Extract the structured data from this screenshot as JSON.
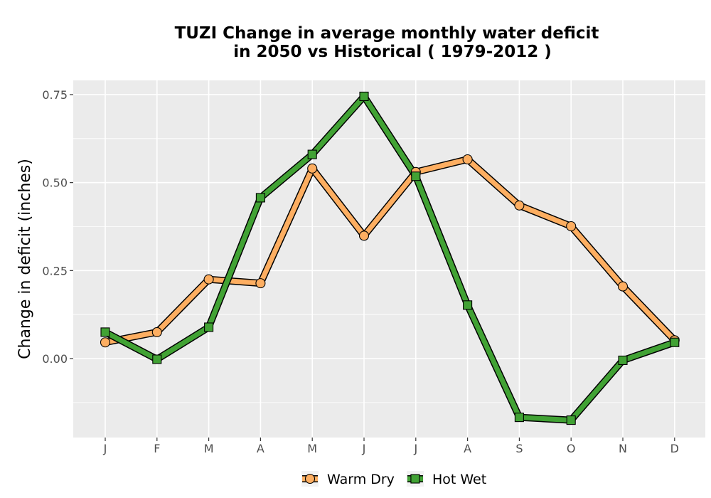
{
  "chart_data": {
    "type": "line",
    "title": [
      "TUZI  Change in average monthly water deficit",
      "in 2050 vs Historical ( 1979-2012 )"
    ],
    "xlabel": "",
    "ylabel": "Change in deficit (inches)",
    "categories": [
      "J",
      "F",
      "M",
      "A",
      "M",
      "J",
      "J",
      "A",
      "S",
      "O",
      "N",
      "D"
    ],
    "yticks": [
      0.0,
      0.25,
      0.5,
      0.75
    ],
    "ytick_labels": [
      "0.00",
      "0.25",
      "0.50",
      "0.75"
    ],
    "ylim": [
      -0.22,
      0.79
    ],
    "grid": true,
    "legend_position": "bottom",
    "series": [
      {
        "name": "Warm Dry",
        "marker": "circle",
        "color": "#FDAE61",
        "values": [
          0.046,
          0.075,
          0.225,
          0.214,
          0.54,
          0.349,
          0.53,
          0.566,
          0.435,
          0.376,
          0.205,
          0.052
        ]
      },
      {
        "name": "Hot Wet",
        "marker": "square",
        "color": "#41A234",
        "values": [
          0.075,
          -0.002,
          0.089,
          0.457,
          0.58,
          0.745,
          0.518,
          0.152,
          -0.167,
          -0.175,
          -0.005,
          0.046
        ]
      }
    ]
  }
}
